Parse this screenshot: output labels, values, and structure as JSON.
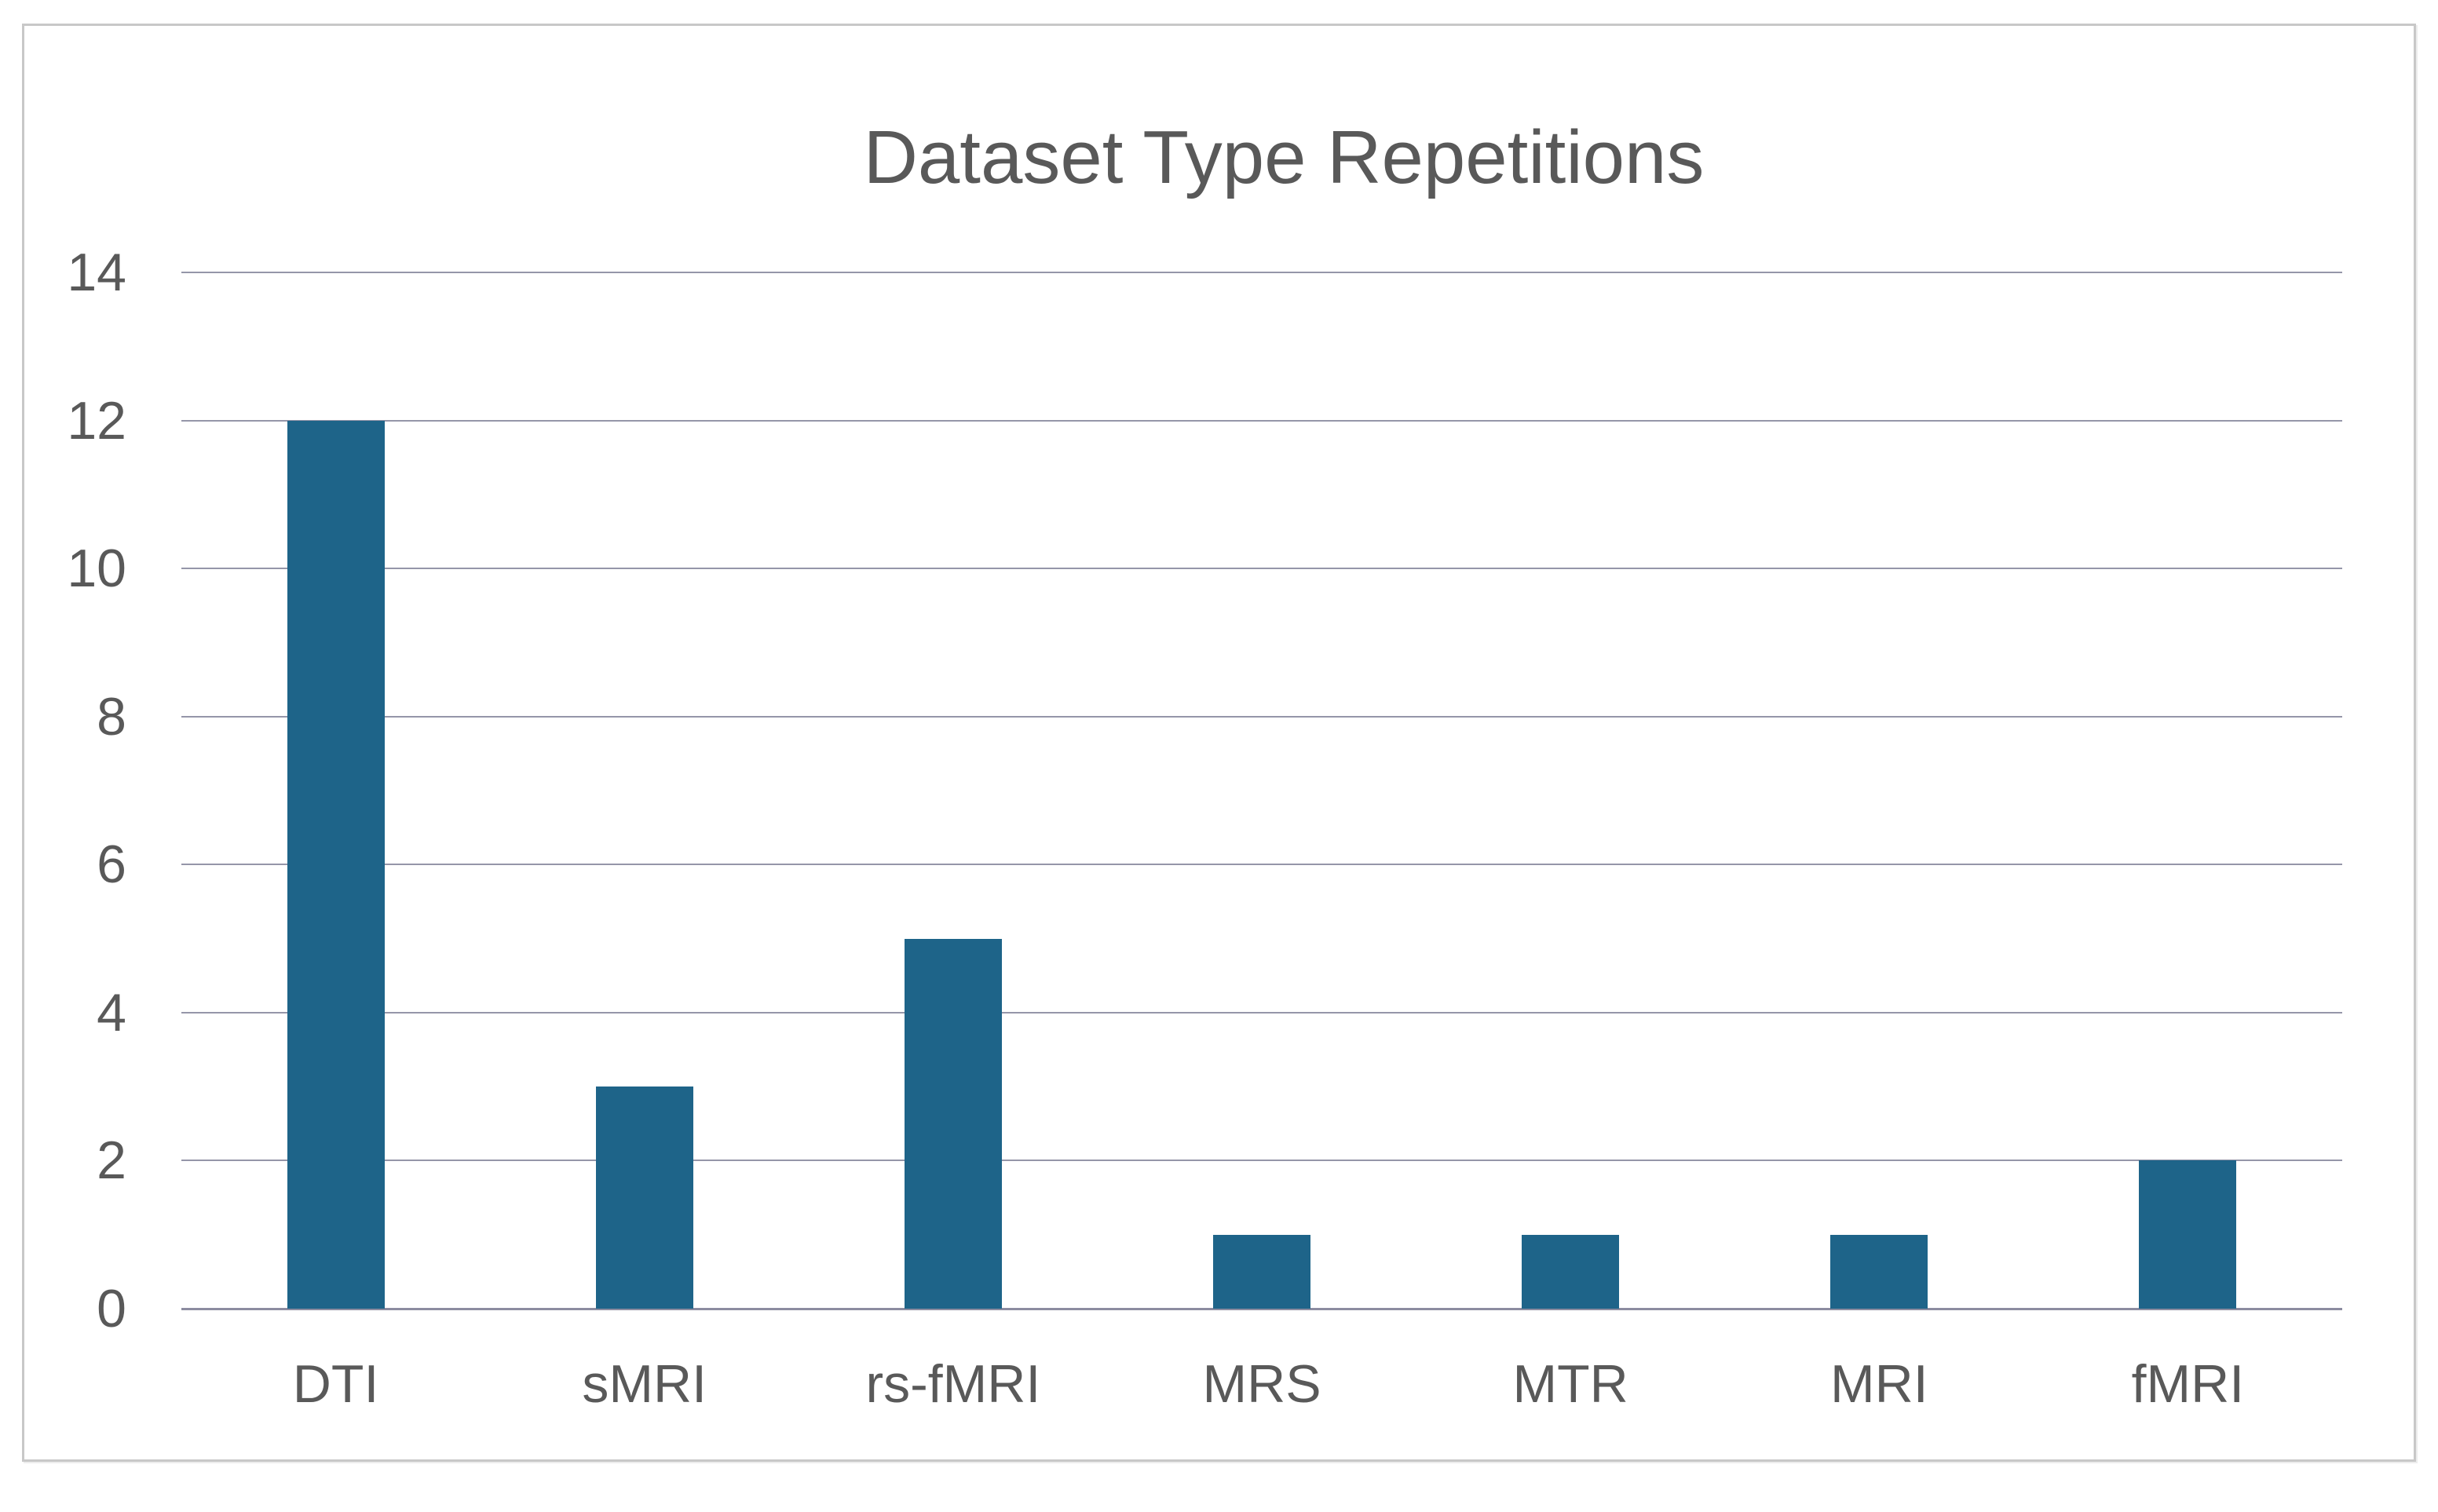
{
  "page": {
    "background_color": "#ffffff",
    "frame_border_color": "#c8c8c8"
  },
  "chart_data": {
    "type": "bar",
    "title": "Dataset Type Repetitions",
    "categories": [
      "DTI",
      "sMRI",
      "rs-fMRI",
      "MRS",
      "MTR",
      "MRI",
      "fMRI"
    ],
    "values": [
      12,
      3,
      5,
      1,
      1,
      1,
      2
    ],
    "xlabel": "",
    "ylabel": "",
    "ylim": [
      0,
      14
    ],
    "yticks": [
      0,
      2,
      4,
      6,
      8,
      10,
      12,
      14
    ],
    "grid": true,
    "legend": "none",
    "bar_color": "#1E6489",
    "gridline_color": "#9596A9",
    "axis_line_color": "#8C8CA0",
    "label_color": "#595959",
    "title_color": "#595959"
  }
}
